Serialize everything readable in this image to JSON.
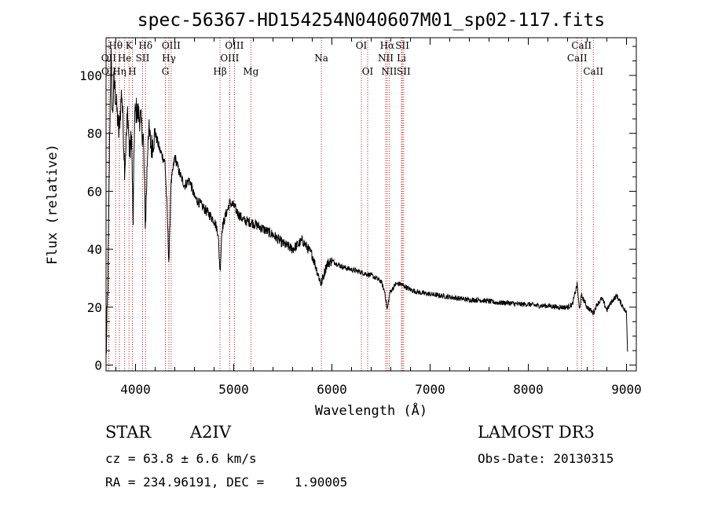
{
  "chart_data": {
    "type": "line",
    "title": "spec-56367-HD154254N040607M01_sp02-117.fits",
    "xlabel": "Wavelength (Å)",
    "ylabel": "Flux (relative)",
    "xlim": [
      3700,
      9100
    ],
    "ylim": [
      -2,
      113
    ],
    "x_ticks": [
      4000,
      5000,
      6000,
      7000,
      8000,
      9000
    ],
    "y_ticks": [
      0,
      20,
      40,
      60,
      80,
      100
    ],
    "spectrum_anchor_points": {
      "x": [
        3700,
        3720,
        3735,
        3750,
        3765,
        3780,
        3800,
        3830,
        3860,
        3890,
        3920,
        3940,
        3960,
        3975,
        3990,
        4010,
        4050,
        4080,
        4101,
        4130,
        4160,
        4200,
        4250,
        4300,
        4320,
        4340,
        4360,
        4400,
        4450,
        4500,
        4550,
        4600,
        4650,
        4700,
        4750,
        4800,
        4840,
        4861,
        4880,
        4920,
        4960,
        5000,
        5050,
        5100,
        5200,
        5300,
        5400,
        5500,
        5600,
        5700,
        5800,
        5890,
        5950,
        6000,
        6100,
        6200,
        6300,
        6400,
        6500,
        6540,
        6563,
        6590,
        6650,
        6700,
        6800,
        6900,
        7000,
        7100,
        7200,
        7300,
        7400,
        7500,
        7600,
        7700,
        7800,
        7900,
        8000,
        8100,
        8200,
        8300,
        8400,
        8450,
        8498,
        8520,
        8542,
        8600,
        8662,
        8700,
        8750,
        8800,
        8850,
        8900,
        8950,
        9000,
        9010
      ],
      "y": [
        2,
        30,
        75,
        108,
        85,
        98,
        92,
        80,
        95,
        68,
        88,
        72,
        80,
        48,
        86,
        88,
        85,
        78,
        48,
        82,
        75,
        80,
        74,
        70,
        55,
        35,
        62,
        72,
        66,
        62,
        64,
        58,
        56,
        54,
        52,
        50,
        46,
        32,
        47,
        52,
        56,
        55,
        52,
        50,
        49,
        47,
        45,
        42,
        40,
        43,
        38,
        28,
        35,
        36,
        34,
        33,
        32,
        31,
        29,
        25,
        19,
        25,
        28,
        28,
        26,
        25,
        24.5,
        24,
        23.5,
        23,
        22.5,
        22.5,
        22,
        21.5,
        21.5,
        21,
        21,
        20.5,
        20.5,
        20,
        20,
        21,
        28,
        19,
        24,
        20,
        18,
        21,
        23,
        19,
        22,
        24,
        21,
        18,
        5
      ]
    },
    "spectral_lines": [
      {
        "label": "Hθ",
        "wavelength": 3798,
        "row": 1
      },
      {
        "label": "OII",
        "wavelength": 3727,
        "row": 2
      },
      {
        "label": "OII",
        "wavelength": 3729,
        "row": 3
      },
      {
        "label": "Hη",
        "wavelength": 3835,
        "row": 3
      },
      {
        "label": "K",
        "wavelength": 3934,
        "row": 1
      },
      {
        "label": "He",
        "wavelength": 3889,
        "row": 2
      },
      {
        "label": "SII",
        "wavelength": 4072,
        "row": 2
      },
      {
        "label": "H",
        "wavelength": 3968,
        "row": 3
      },
      {
        "label": "Hδ",
        "wavelength": 4102,
        "row": 1
      },
      {
        "label": "OIII",
        "wavelength": 4363,
        "row": 1
      },
      {
        "label": "Hγ",
        "wavelength": 4340,
        "row": 2
      },
      {
        "label": "G",
        "wavelength": 4304,
        "row": 3
      },
      {
        "label": "OIII",
        "wavelength": 5007,
        "row": 1
      },
      {
        "label": "OIII",
        "wavelength": 4959,
        "row": 2
      },
      {
        "label": "Hβ",
        "wavelength": 4861,
        "row": 3
      },
      {
        "label": "Mg",
        "wavelength": 5175,
        "row": 3
      },
      {
        "label": "Na",
        "wavelength": 5893,
        "row": 2
      },
      {
        "label": "OI",
        "wavelength": 6300,
        "row": 1
      },
      {
        "label": "OI",
        "wavelength": 6364,
        "row": 3
      },
      {
        "label": "Hα",
        "wavelength": 6563,
        "row": 1
      },
      {
        "label": "SII",
        "wavelength": 6717,
        "row": 1
      },
      {
        "label": "NII",
        "wavelength": 6548,
        "row": 2
      },
      {
        "label": "Li",
        "wavelength": 6708,
        "row": 2
      },
      {
        "label": "NII",
        "wavelength": 6583,
        "row": 3
      },
      {
        "label": "SII",
        "wavelength": 6731,
        "row": 3
      },
      {
        "label": "CaII",
        "wavelength": 8542,
        "row": 1
      },
      {
        "label": "CaII",
        "wavelength": 8498,
        "row": 2
      },
      {
        "label": "CaII",
        "wavelength": 8662,
        "row": 3
      }
    ]
  },
  "info": {
    "object_class": "STAR",
    "subclass": "A2IV",
    "survey": "LAMOST DR3",
    "cz": "cz = 63.8 ± 6.6 km/s",
    "obs_date": "Obs-Date: 20130315",
    "coords": "RA = 234.96191, DEC =    1.90005"
  }
}
